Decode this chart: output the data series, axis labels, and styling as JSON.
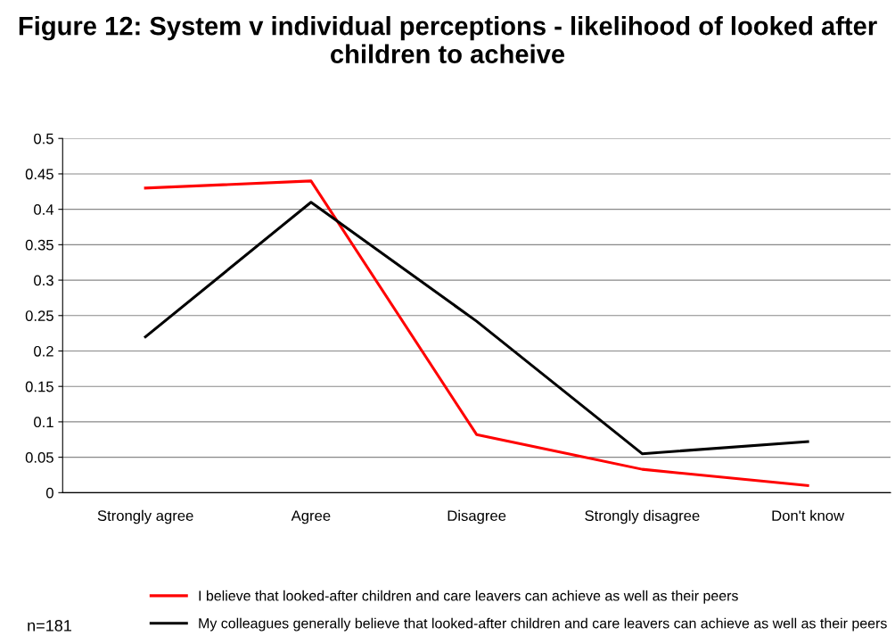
{
  "chart_data": {
    "type": "line",
    "title": "Figure 12: System v individual perceptions - likelihood of looked after children to acheive",
    "categories": [
      "Strongly agree",
      "Agree",
      "Disagree",
      "Strongly disagree",
      "Don't know"
    ],
    "series": [
      {
        "name": "I believe that looked-after children and care leavers can achieve as well as their peers",
        "color": "#ff0000",
        "values": [
          0.43,
          0.44,
          0.082,
          0.033,
          0.01
        ]
      },
      {
        "name": "My colleagues generally believe that looked-after children and care leavers can achieve as well as their peers",
        "color": "#000000",
        "values": [
          0.22,
          0.41,
          0.242,
          0.055,
          0.072
        ]
      }
    ],
    "ylim": [
      0,
      0.5
    ],
    "yticks": [
      0,
      0.05,
      0.1,
      0.15,
      0.2,
      0.25,
      0.3,
      0.35,
      0.4,
      0.45,
      0.5
    ],
    "grid": "y",
    "legend": "bottom",
    "marker": "none",
    "line_style": "solid",
    "annotations": [
      "n=181"
    ]
  }
}
